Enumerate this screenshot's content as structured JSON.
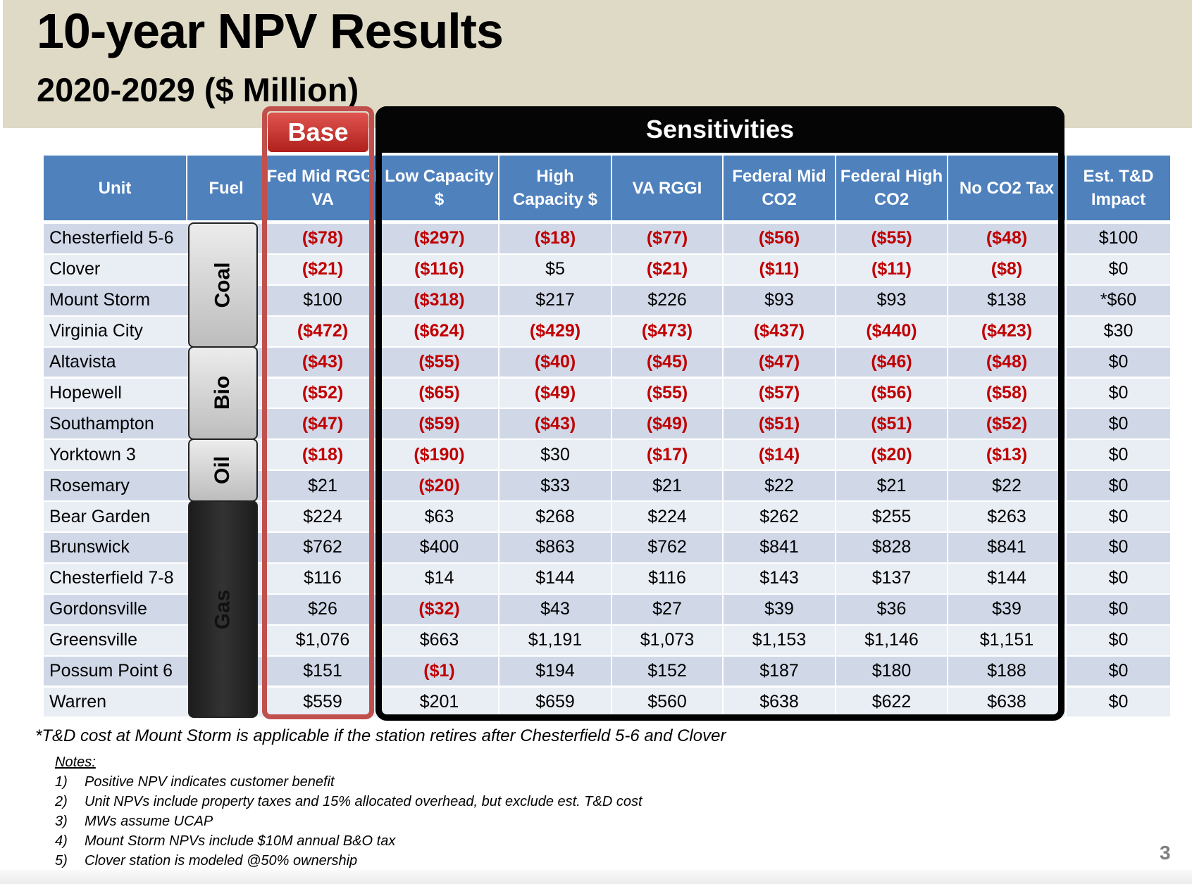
{
  "title": "10-year NPV Results",
  "subtitle": "2020-2029 ($ Million)",
  "groups": {
    "base": "Base",
    "sensitivities": "Sensitivities"
  },
  "columns": [
    "Unit",
    "Fuel",
    "Fed Mid RGGI VA",
    "Low Capacity $",
    "High Capacity $",
    "VA RGGI",
    "Federal Mid CO2",
    "Federal High CO2",
    "No CO2 Tax",
    "Est. T&D Impact"
  ],
  "fuels": [
    {
      "label": "Coal",
      "rows": 4,
      "style": "light"
    },
    {
      "label": "Bio",
      "rows": 3,
      "style": "light"
    },
    {
      "label": "Oil",
      "rows": 2,
      "style": "light"
    },
    {
      "label": "Gas",
      "rows": 7,
      "style": "dark"
    }
  ],
  "rows": [
    {
      "unit": "Chesterfield 5-6",
      "values": [
        "($78)",
        "($297)",
        "($18)",
        "($77)",
        "($56)",
        "($55)",
        "($48)",
        "$100"
      ]
    },
    {
      "unit": "Clover",
      "values": [
        "($21)",
        "($116)",
        "$5",
        "($21)",
        "($11)",
        "($11)",
        "($8)",
        "$0"
      ]
    },
    {
      "unit": "Mount Storm",
      "values": [
        "$100",
        "($318)",
        "$217",
        "$226",
        "$93",
        "$93",
        "$138",
        "*$60"
      ]
    },
    {
      "unit": "Virginia City",
      "values": [
        "($472)",
        "($624)",
        "($429)",
        "($473)",
        "($437)",
        "($440)",
        "($423)",
        "$30"
      ]
    },
    {
      "unit": "Altavista",
      "values": [
        "($43)",
        "($55)",
        "($40)",
        "($45)",
        "($47)",
        "($46)",
        "($48)",
        "$0"
      ]
    },
    {
      "unit": "Hopewell",
      "values": [
        "($52)",
        "($65)",
        "($49)",
        "($55)",
        "($57)",
        "($56)",
        "($58)",
        "$0"
      ]
    },
    {
      "unit": "Southampton",
      "values": [
        "($47)",
        "($59)",
        "($43)",
        "($49)",
        "($51)",
        "($51)",
        "($52)",
        "$0"
      ]
    },
    {
      "unit": "Yorktown 3",
      "values": [
        "($18)",
        "($190)",
        "$30",
        "($17)",
        "($14)",
        "($20)",
        "($13)",
        "$0"
      ]
    },
    {
      "unit": "Rosemary",
      "values": [
        "$21",
        "($20)",
        "$33",
        "$21",
        "$22",
        "$21",
        "$22",
        "$0"
      ]
    },
    {
      "unit": "Bear Garden",
      "values": [
        "$224",
        "$63",
        "$268",
        "$224",
        "$262",
        "$255",
        "$263",
        "$0"
      ]
    },
    {
      "unit": "Brunswick",
      "values": [
        "$762",
        "$400",
        "$863",
        "$762",
        "$841",
        "$828",
        "$841",
        "$0"
      ]
    },
    {
      "unit": "Chesterfield 7-8",
      "values": [
        "$116",
        "$14",
        "$144",
        "$116",
        "$143",
        "$137",
        "$144",
        "$0"
      ]
    },
    {
      "unit": "Gordonsville",
      "values": [
        "$26",
        "($32)",
        "$43",
        "$27",
        "$39",
        "$36",
        "$39",
        "$0"
      ]
    },
    {
      "unit": "Greensville",
      "values": [
        "$1,076",
        "$663",
        "$1,191",
        "$1,073",
        "$1,153",
        "$1,146",
        "$1,151",
        "$0"
      ]
    },
    {
      "unit": "Possum Point 6",
      "values": [
        "$151",
        "($1)",
        "$194",
        "$152",
        "$187",
        "$180",
        "$188",
        "$0"
      ]
    },
    {
      "unit": "Warren",
      "values": [
        "$559",
        "$201",
        "$659",
        "$560",
        "$638",
        "$622",
        "$638",
        "$0"
      ]
    }
  ],
  "footnote": "*T&D cost at Mount Storm is applicable if the station retires after Chesterfield 5-6 and Clover",
  "notes_heading": "Notes:",
  "notes": [
    {
      "num": "1)",
      "text": "Positive NPV indicates customer benefit"
    },
    {
      "num": "2)",
      "text": "Unit NPVs include property taxes and 15% allocated overhead, but exclude est. T&D cost"
    },
    {
      "num": "3)",
      "text": "MWs assume UCAP"
    },
    {
      "num": "4)",
      "text": "Mount Storm NPVs include $10M annual B&O tax"
    },
    {
      "num": "5)",
      "text": "Clover station is modeled @50% ownership"
    }
  ],
  "page_number": "3",
  "colors": {
    "header": "#4f81bd",
    "negative": "#c00000",
    "base": "#c0504d",
    "row_dark": "#d0d8e8",
    "row_light": "#e9edf4"
  }
}
